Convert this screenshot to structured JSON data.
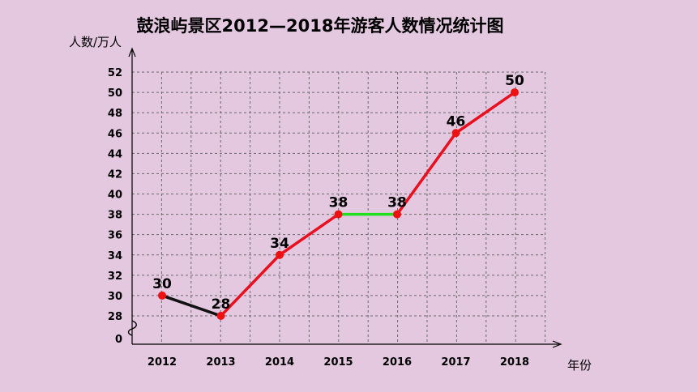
{
  "chart_data": {
    "type": "line",
    "title": "鼓浪屿景区2012—2018年游客人数情况统计图",
    "ylabel": "人数/万人",
    "xlabel": "年份",
    "categories": [
      "2012",
      "2013",
      "2014",
      "2015",
      "2016",
      "2017",
      "2018"
    ],
    "values": [
      30,
      28,
      34,
      38,
      38,
      46,
      50
    ],
    "data_labels": [
      "30",
      "28",
      "34",
      "38",
      "38",
      "46",
      "50"
    ],
    "y_ticks": [
      "0",
      "28",
      "30",
      "32",
      "34",
      "36",
      "38",
      "40",
      "42",
      "44",
      "46",
      "48",
      "50",
      "52"
    ],
    "ylim": [
      28,
      52
    ],
    "y_axis_break": true,
    "grid": true,
    "segment_colors": [
      "#111111",
      "#e8101f",
      "#e8101f",
      "#22e020",
      "#e8101f",
      "#e8101f"
    ],
    "point_color": "#ee1111"
  }
}
